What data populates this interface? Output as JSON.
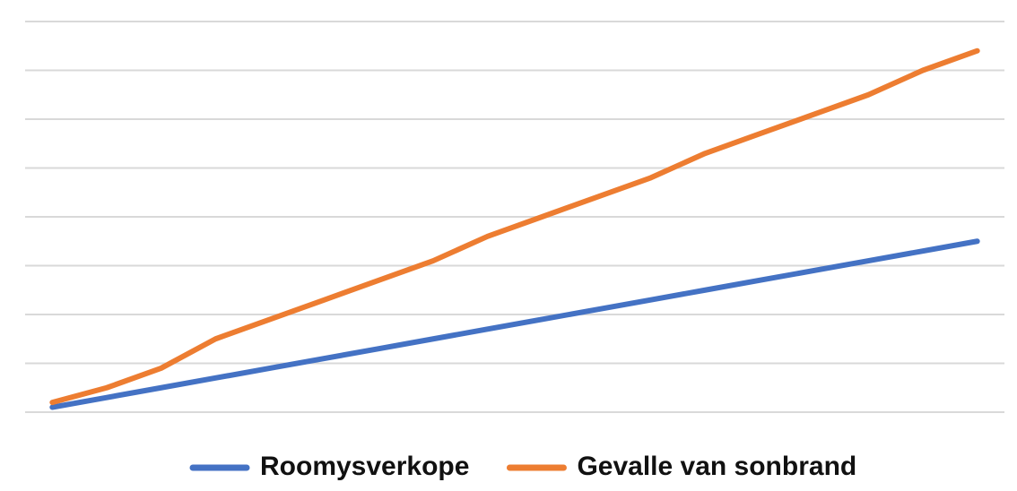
{
  "chart_data": {
    "type": "line",
    "categories": [
      null,
      null,
      null,
      null,
      null,
      null,
      null,
      null,
      null,
      null,
      null,
      null,
      null,
      null,
      null,
      null,
      null,
      null
    ],
    "series": [
      {
        "name": "Roomysverkope",
        "color": "#4472c4",
        "values": [
          0.1,
          0.3,
          0.5,
          0.7,
          0.9,
          1.1,
          1.3,
          1.5,
          1.7,
          1.9,
          2.1,
          2.3,
          2.5,
          2.7,
          2.9,
          3.1,
          3.3,
          3.5
        ]
      },
      {
        "name": "Gevalle van sonbrand",
        "color": "#ed7d31",
        "values": [
          0.2,
          0.5,
          0.9,
          1.5,
          1.9,
          2.3,
          2.7,
          3.1,
          3.6,
          4.0,
          4.4,
          4.8,
          5.3,
          5.7,
          6.1,
          6.5,
          7.0,
          7.4
        ]
      }
    ],
    "ylim": [
      0,
      8
    ],
    "yticks": [
      0,
      1,
      2,
      3,
      4,
      5,
      6,
      7,
      8
    ],
    "grid": true
  }
}
